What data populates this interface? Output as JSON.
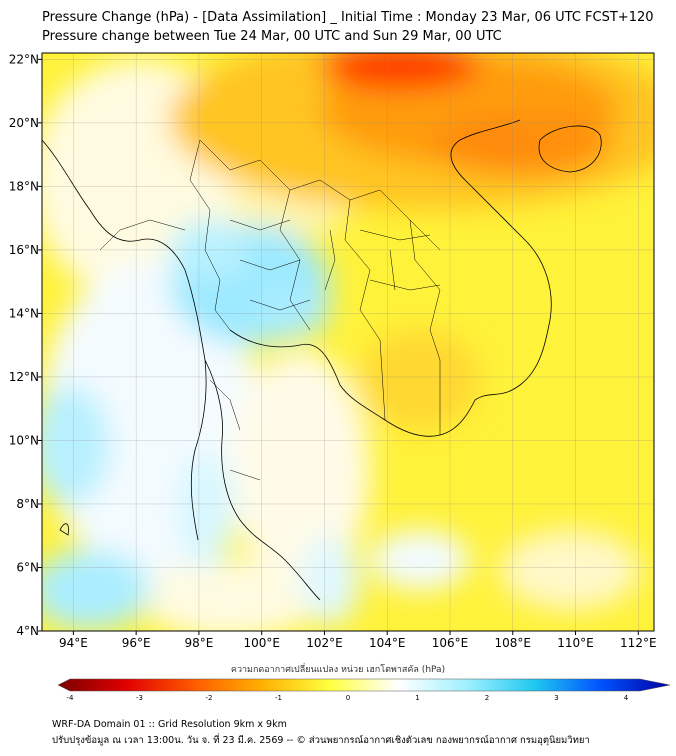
{
  "title_line1": "Pressure Change (hPa) - [Data Assimilation] _ Initial Time : Monday 23 Mar, 06 UTC FCST+120",
  "title_line2": "Pressure change between Tue 24 Mar, 00 UTC and Sun 29 Mar, 00 UTC",
  "map": {
    "lon_range": [
      93,
      112.5
    ],
    "lat_range": [
      4,
      22.2
    ],
    "lon_ticks": [
      {
        "value": 94,
        "label": "94°E"
      },
      {
        "value": 96,
        "label": "96°E"
      },
      {
        "value": 98,
        "label": "98°E"
      },
      {
        "value": 100,
        "label": "100°E"
      },
      {
        "value": 102,
        "label": "102°E"
      },
      {
        "value": 104,
        "label": "104°E"
      },
      {
        "value": 106,
        "label": "106°E"
      },
      {
        "value": 108,
        "label": "108°E"
      },
      {
        "value": 110,
        "label": "110°E"
      },
      {
        "value": 112,
        "label": "112°E"
      }
    ],
    "lat_ticks": [
      {
        "value": 22,
        "label": "22°N"
      },
      {
        "value": 20,
        "label": "20°N"
      },
      {
        "value": 18,
        "label": "18°N"
      },
      {
        "value": 16,
        "label": "16°N"
      },
      {
        "value": 14,
        "label": "14°N"
      },
      {
        "value": 12,
        "label": "12°N"
      },
      {
        "value": 10,
        "label": "10°N"
      },
      {
        "value": 8,
        "label": "8°N"
      },
      {
        "value": 6,
        "label": "6°N"
      },
      {
        "value": 4,
        "label": "4°N"
      }
    ]
  },
  "colorbar": {
    "label": "ความกดอากาศเปลี่ยนแปลง หน่วย เฮกโตพาสคัล (hPa)",
    "range": [
      -4,
      4
    ],
    "ticks": [
      {
        "value": -4,
        "label": "-4"
      },
      {
        "value": -3,
        "label": "-3"
      },
      {
        "value": -2,
        "label": "-2"
      },
      {
        "value": -1,
        "label": "-1"
      },
      {
        "value": 0,
        "label": "0"
      },
      {
        "value": 1,
        "label": "1"
      },
      {
        "value": 2,
        "label": "2"
      },
      {
        "value": 3,
        "label": "3"
      },
      {
        "value": 4,
        "label": "4"
      }
    ],
    "colors": [
      "#7a0000",
      "#e00000",
      "#ff5a00",
      "#ffb000",
      "#ffff40",
      "#ffffff",
      "#a0f0ff",
      "#20c8f0",
      "#0050ff",
      "#0000a0"
    ]
  },
  "footer_line1": "WRF-DA Domain 01 :: Grid Resolution 9km x 9km",
  "footer_line2": "ปรับปรุงข้อมูล ณ เวลา 13:00น. วัน จ. ที่ 23 มี.ค. 2569 -- © ส่วนพยากรณ์อากาศเชิงตัวเลข กองพยากรณ์อากาศ กรมอุตุนิยมวิทยา"
}
